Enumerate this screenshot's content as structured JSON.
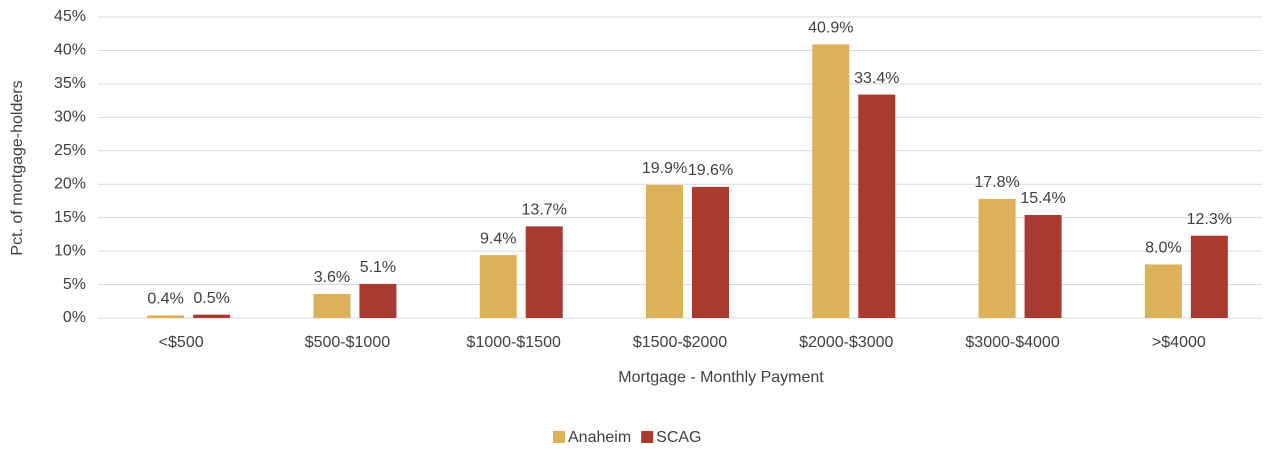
{
  "chart_data": {
    "type": "bar",
    "x_label": "Mortgage - Monthly Payment",
    "y_label": "Pct. of mortgage-holders",
    "categories": [
      "<$500",
      "$500-$1000",
      "$1000-$1500",
      "$1500-$2000",
      "$2000-$3000",
      "$3000-$4000",
      ">$4000"
    ],
    "series": [
      {
        "name": "Anaheim",
        "color": "#ddb05a",
        "values": [
          0.4,
          3.6,
          9.4,
          19.9,
          40.9,
          17.8,
          8.0
        ],
        "value_labels": [
          "0.4%",
          "3.6%",
          "9.4%",
          "19.9%",
          "40.9%",
          "17.8%",
          "8.0%"
        ]
      },
      {
        "name": "SCAG",
        "color": "#a93a2f",
        "values": [
          0.5,
          5.1,
          13.7,
          19.6,
          33.4,
          15.4,
          12.3
        ],
        "value_labels": [
          "0.5%",
          "5.1%",
          "13.7%",
          "19.6%",
          "33.4%",
          "15.4%",
          "12.3%"
        ]
      }
    ],
    "ylim": [
      0,
      45
    ],
    "yticks": [
      {
        "value": 0,
        "label": "0%"
      },
      {
        "value": 5,
        "label": "5%"
      },
      {
        "value": 10,
        "label": "10%"
      },
      {
        "value": 15,
        "label": "15%"
      },
      {
        "value": 20,
        "label": "20%"
      },
      {
        "value": 25,
        "label": "25%"
      },
      {
        "value": 30,
        "label": "30%"
      },
      {
        "value": 35,
        "label": "35%"
      },
      {
        "value": 40,
        "label": "40%"
      },
      {
        "value": 45,
        "label": "45%"
      }
    ],
    "grid": true,
    "legend": "bottom"
  }
}
